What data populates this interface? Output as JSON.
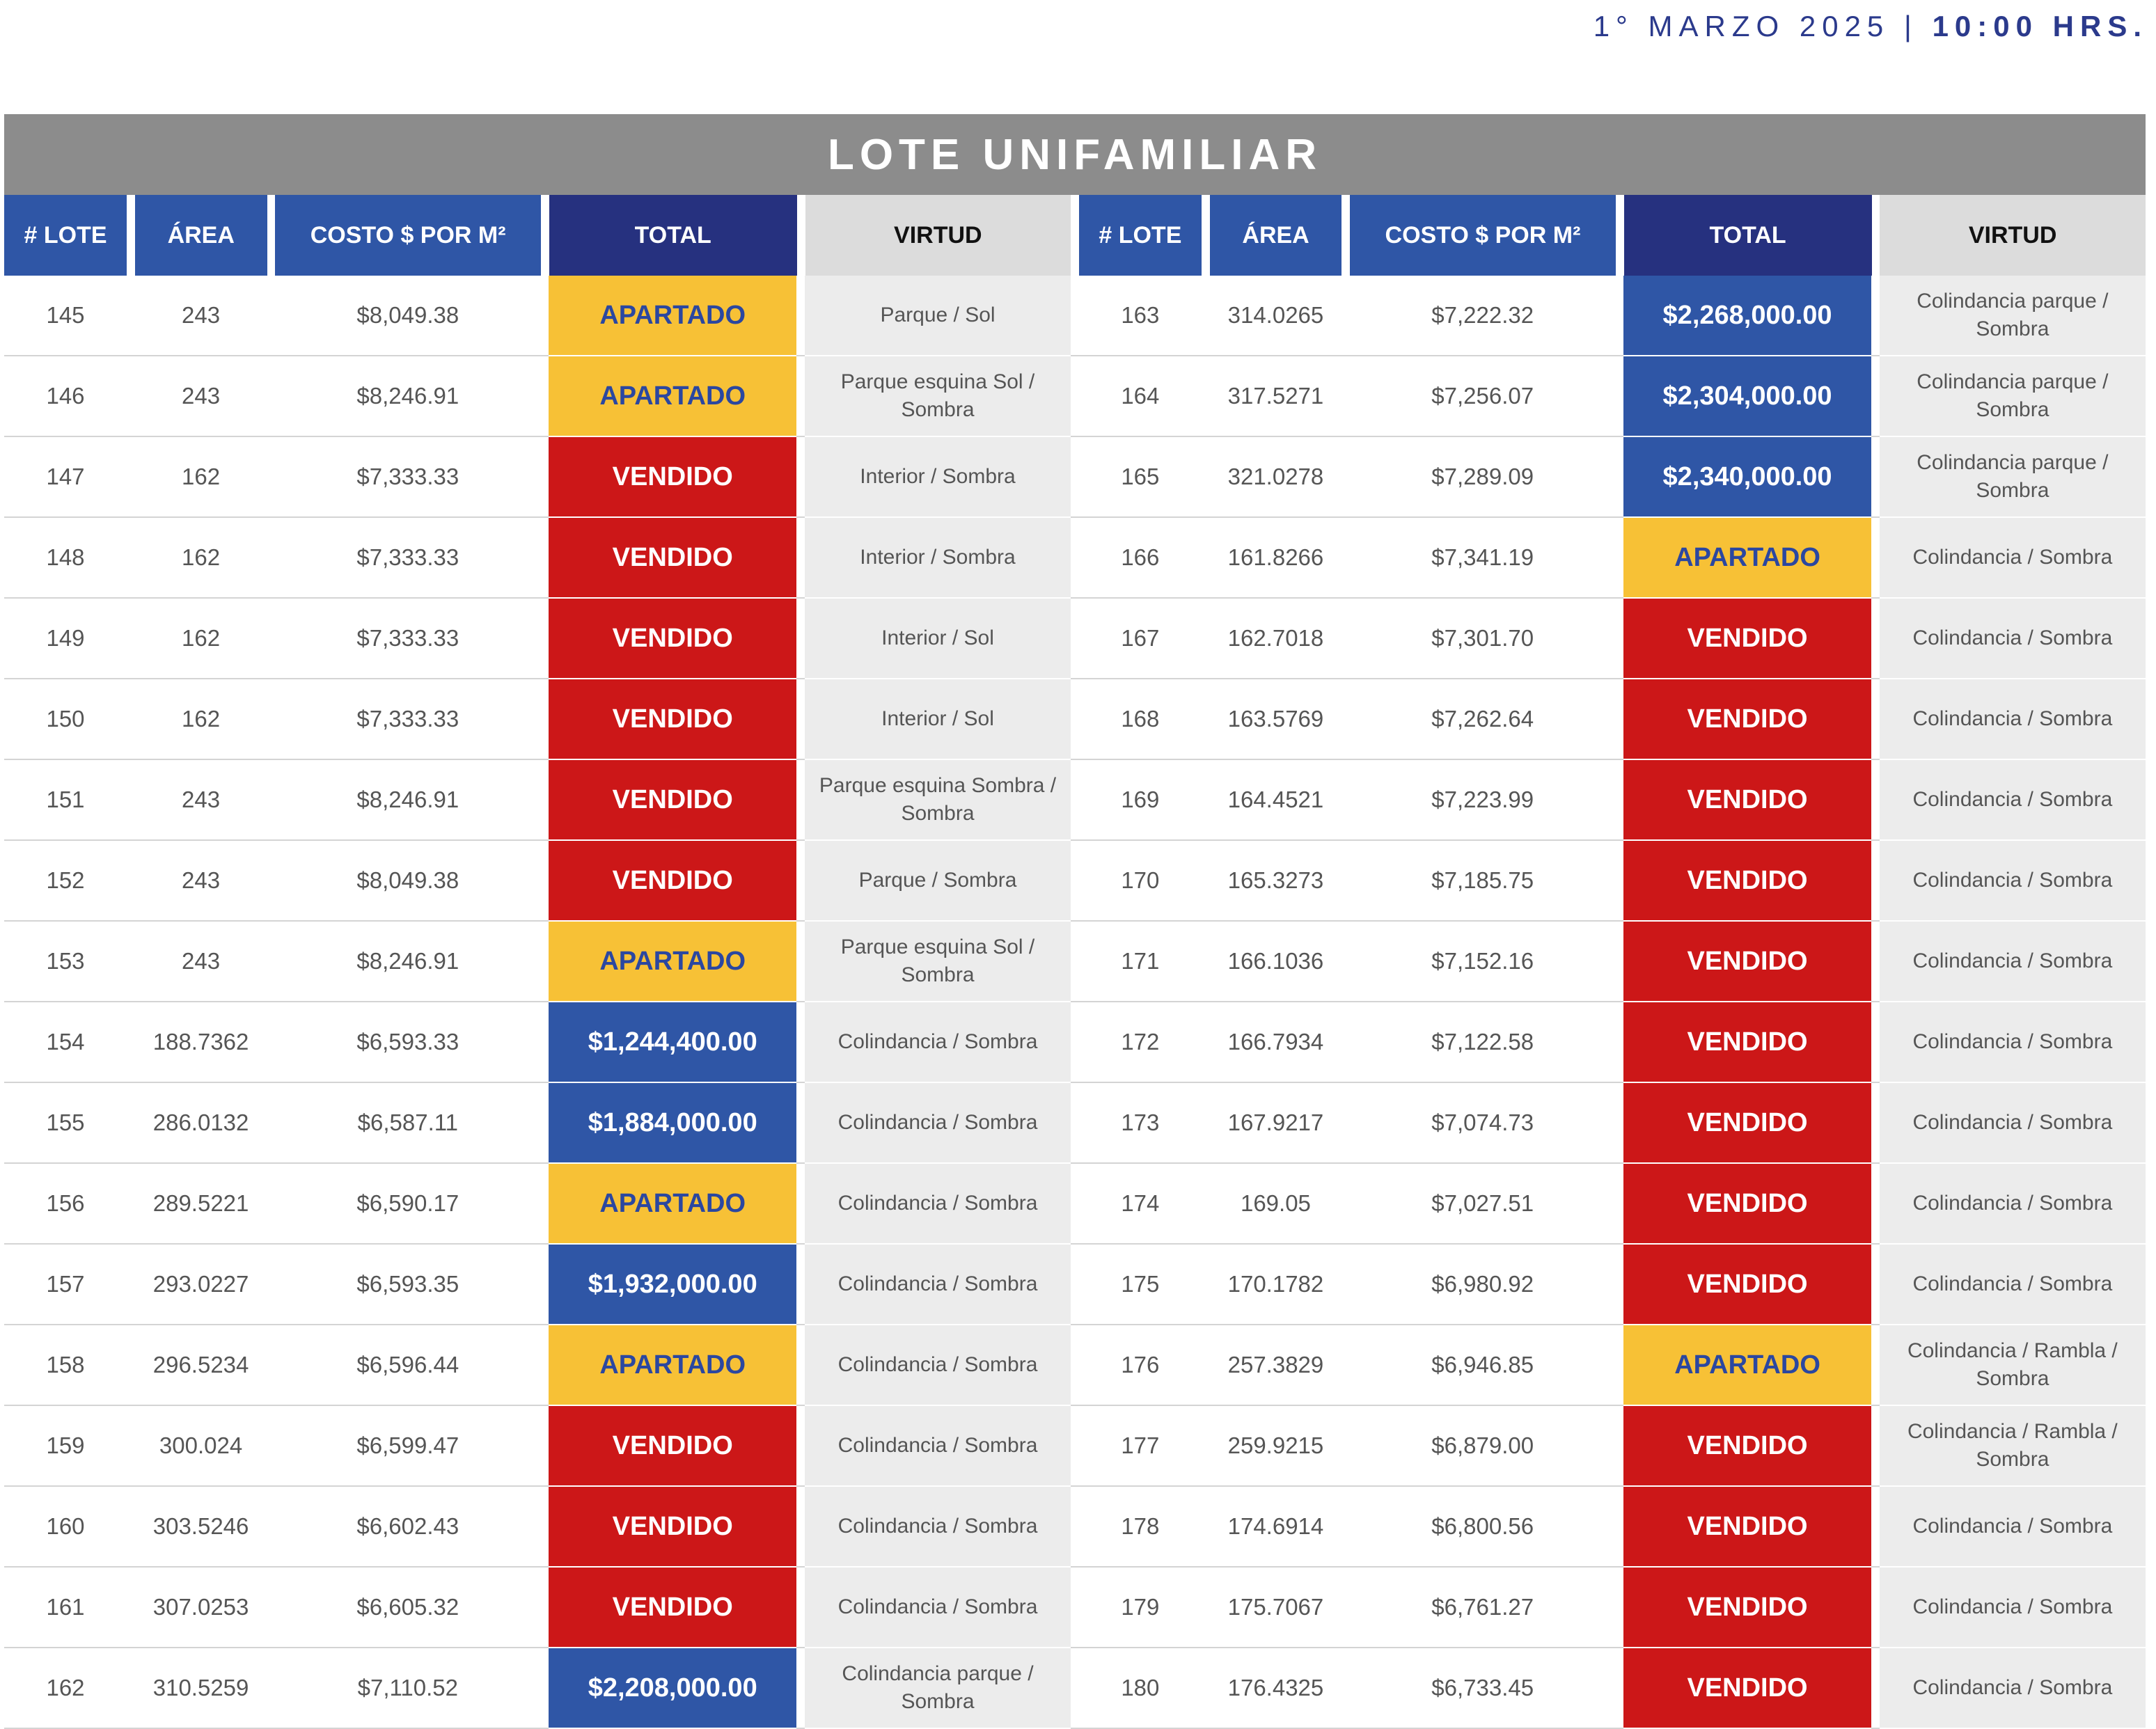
{
  "header": {
    "date": "1° MARZO 2025",
    "separator": "|",
    "time": "10:00 HRS."
  },
  "title": "LOTE UNIFAMILIAR",
  "columns": [
    "# LOTE",
    "ÁREA",
    "COSTO $ POR M²",
    "TOTAL",
    "VIRTUD"
  ],
  "colors": {
    "apartado": "#f7c136",
    "vendido": "#cc1718",
    "price": "#2f56a6",
    "navy": "#26317f",
    "title_bar": "#8c8c8c"
  },
  "left": [
    {
      "lote": "145",
      "area": "243",
      "costo": "$8,049.38",
      "total": "APARTADO",
      "status": "apartado",
      "virtud": "Parque / Sol"
    },
    {
      "lote": "146",
      "area": "243",
      "costo": "$8,246.91",
      "total": "APARTADO",
      "status": "apartado",
      "virtud": "Parque esquina Sol / Sombra"
    },
    {
      "lote": "147",
      "area": "162",
      "costo": "$7,333.33",
      "total": "VENDIDO",
      "status": "vendido",
      "virtud": "Interior / Sombra"
    },
    {
      "lote": "148",
      "area": "162",
      "costo": "$7,333.33",
      "total": "VENDIDO",
      "status": "vendido",
      "virtud": "Interior / Sombra"
    },
    {
      "lote": "149",
      "area": "162",
      "costo": "$7,333.33",
      "total": "VENDIDO",
      "status": "vendido",
      "virtud": "Interior / Sol"
    },
    {
      "lote": "150",
      "area": "162",
      "costo": "$7,333.33",
      "total": "VENDIDO",
      "status": "vendido",
      "virtud": "Interior / Sol"
    },
    {
      "lote": "151",
      "area": "243",
      "costo": "$8,246.91",
      "total": "VENDIDO",
      "status": "vendido",
      "virtud": "Parque esquina Sombra / Sombra"
    },
    {
      "lote": "152",
      "area": "243",
      "costo": "$8,049.38",
      "total": "VENDIDO",
      "status": "vendido",
      "virtud": "Parque / Sombra"
    },
    {
      "lote": "153",
      "area": "243",
      "costo": "$8,246.91",
      "total": "APARTADO",
      "status": "apartado",
      "virtud": "Parque esquina Sol / Sombra"
    },
    {
      "lote": "154",
      "area": "188.7362",
      "costo": "$6,593.33",
      "total": "$1,244,400.00",
      "status": "price",
      "virtud": "Colindancia / Sombra"
    },
    {
      "lote": "155",
      "area": "286.0132",
      "costo": "$6,587.11",
      "total": "$1,884,000.00",
      "status": "price",
      "virtud": "Colindancia / Sombra"
    },
    {
      "lote": "156",
      "area": "289.5221",
      "costo": "$6,590.17",
      "total": "APARTADO",
      "status": "apartado",
      "virtud": "Colindancia / Sombra"
    },
    {
      "lote": "157",
      "area": "293.0227",
      "costo": "$6,593.35",
      "total": "$1,932,000.00",
      "status": "price",
      "virtud": "Colindancia / Sombra"
    },
    {
      "lote": "158",
      "area": "296.5234",
      "costo": "$6,596.44",
      "total": "APARTADO",
      "status": "apartado",
      "virtud": "Colindancia / Sombra"
    },
    {
      "lote": "159",
      "area": "300.024",
      "costo": "$6,599.47",
      "total": "VENDIDO",
      "status": "vendido",
      "virtud": "Colindancia / Sombra"
    },
    {
      "lote": "160",
      "area": "303.5246",
      "costo": "$6,602.43",
      "total": "VENDIDO",
      "status": "vendido",
      "virtud": "Colindancia / Sombra"
    },
    {
      "lote": "161",
      "area": "307.0253",
      "costo": "$6,605.32",
      "total": "VENDIDO",
      "status": "vendido",
      "virtud": "Colindancia / Sombra"
    },
    {
      "lote": "162",
      "area": "310.5259",
      "costo": "$7,110.52",
      "total": "$2,208,000.00",
      "status": "price",
      "virtud": "Colindancia parque / Sombra"
    }
  ],
  "right": [
    {
      "lote": "163",
      "area": "314.0265",
      "costo": "$7,222.32",
      "total": "$2,268,000.00",
      "status": "price",
      "virtud": "Colindancia parque / Sombra"
    },
    {
      "lote": "164",
      "area": "317.5271",
      "costo": "$7,256.07",
      "total": "$2,304,000.00",
      "status": "price",
      "virtud": "Colindancia parque / Sombra"
    },
    {
      "lote": "165",
      "area": "321.0278",
      "costo": "$7,289.09",
      "total": "$2,340,000.00",
      "status": "price",
      "virtud": "Colindancia parque / Sombra"
    },
    {
      "lote": "166",
      "area": "161.8266",
      "costo": "$7,341.19",
      "total": "APARTADO",
      "status": "apartado",
      "virtud": "Colindancia / Sombra"
    },
    {
      "lote": "167",
      "area": "162.7018",
      "costo": "$7,301.70",
      "total": "VENDIDO",
      "status": "vendido",
      "virtud": "Colindancia / Sombra"
    },
    {
      "lote": "168",
      "area": "163.5769",
      "costo": "$7,262.64",
      "total": "VENDIDO",
      "status": "vendido",
      "virtud": "Colindancia / Sombra"
    },
    {
      "lote": "169",
      "area": "164.4521",
      "costo": "$7,223.99",
      "total": "VENDIDO",
      "status": "vendido",
      "virtud": "Colindancia / Sombra"
    },
    {
      "lote": "170",
      "area": "165.3273",
      "costo": "$7,185.75",
      "total": "VENDIDO",
      "status": "vendido",
      "virtud": "Colindancia / Sombra"
    },
    {
      "lote": "171",
      "area": "166.1036",
      "costo": "$7,152.16",
      "total": "VENDIDO",
      "status": "vendido",
      "virtud": "Colindancia / Sombra"
    },
    {
      "lote": "172",
      "area": "166.7934",
      "costo": "$7,122.58",
      "total": "VENDIDO",
      "status": "vendido",
      "virtud": "Colindancia / Sombra"
    },
    {
      "lote": "173",
      "area": "167.9217",
      "costo": "$7,074.73",
      "total": "VENDIDO",
      "status": "vendido",
      "virtud": "Colindancia / Sombra"
    },
    {
      "lote": "174",
      "area": "169.05",
      "costo": "$7,027.51",
      "total": "VENDIDO",
      "status": "vendido",
      "virtud": "Colindancia / Sombra"
    },
    {
      "lote": "175",
      "area": "170.1782",
      "costo": "$6,980.92",
      "total": "VENDIDO",
      "status": "vendido",
      "virtud": "Colindancia / Sombra"
    },
    {
      "lote": "176",
      "area": "257.3829",
      "costo": "$6,946.85",
      "total": "APARTADO",
      "status": "apartado",
      "virtud": "Colindancia / Rambla / Sombra"
    },
    {
      "lote": "177",
      "area": "259.9215",
      "costo": "$6,879.00",
      "total": "VENDIDO",
      "status": "vendido",
      "virtud": "Colindancia / Rambla / Sombra"
    },
    {
      "lote": "178",
      "area": "174.6914",
      "costo": "$6,800.56",
      "total": "VENDIDO",
      "status": "vendido",
      "virtud": "Colindancia / Sombra"
    },
    {
      "lote": "179",
      "area": "175.7067",
      "costo": "$6,761.27",
      "total": "VENDIDO",
      "status": "vendido",
      "virtud": "Colindancia / Sombra"
    },
    {
      "lote": "180",
      "area": "176.4325",
      "costo": "$6,733.45",
      "total": "VENDIDO",
      "status": "vendido",
      "virtud": "Colindancia / Sombra"
    }
  ]
}
